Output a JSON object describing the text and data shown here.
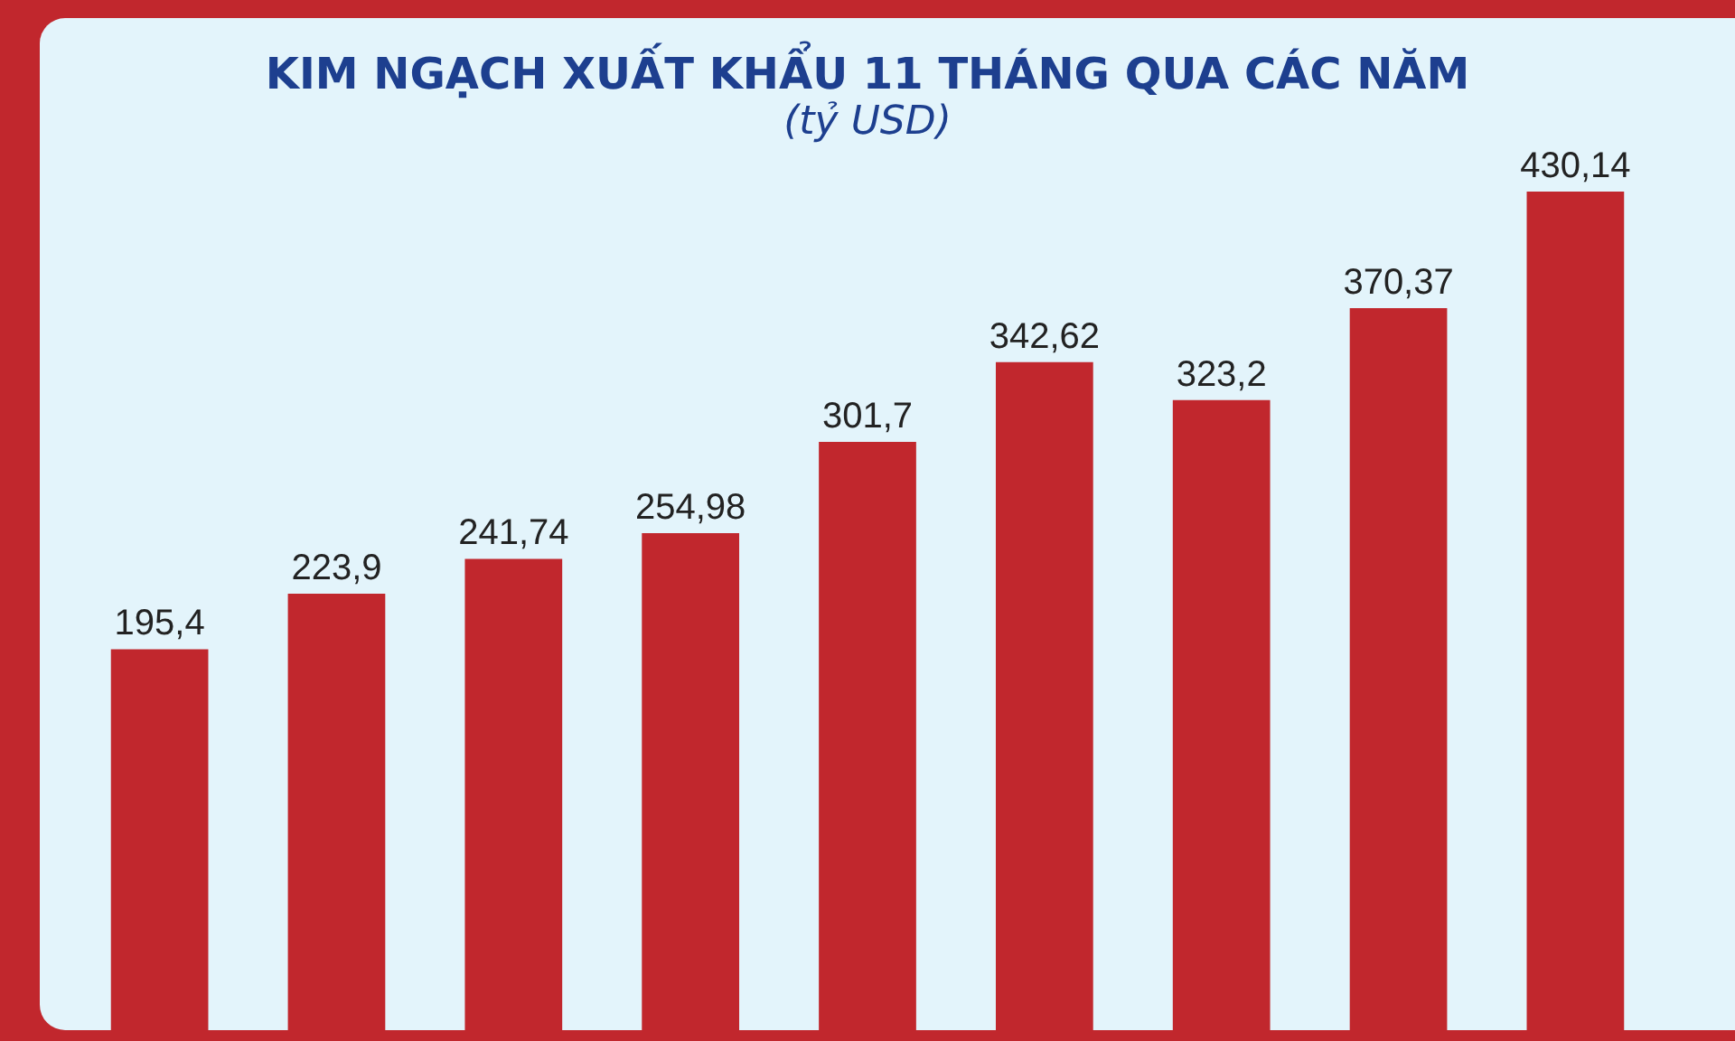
{
  "chart_data": {
    "type": "bar",
    "title": "KIM NGẠCH XUẤT KHẨU 11 THÁNG QUA CÁC NĂM",
    "subtitle": "(tỷ USD)",
    "categories": [
      null,
      null,
      null,
      null,
      null,
      null,
      null,
      null,
      null
    ],
    "values": [
      195.4,
      223.9,
      241.74,
      254.98,
      301.7,
      342.62,
      323.2,
      370.37,
      430.14
    ],
    "value_labels": [
      "195,4",
      "223,9",
      "241,74",
      "254,98",
      "301,7",
      "342,62",
      "323,2",
      "370,37",
      "430,14"
    ],
    "color": "#c1272d"
  }
}
